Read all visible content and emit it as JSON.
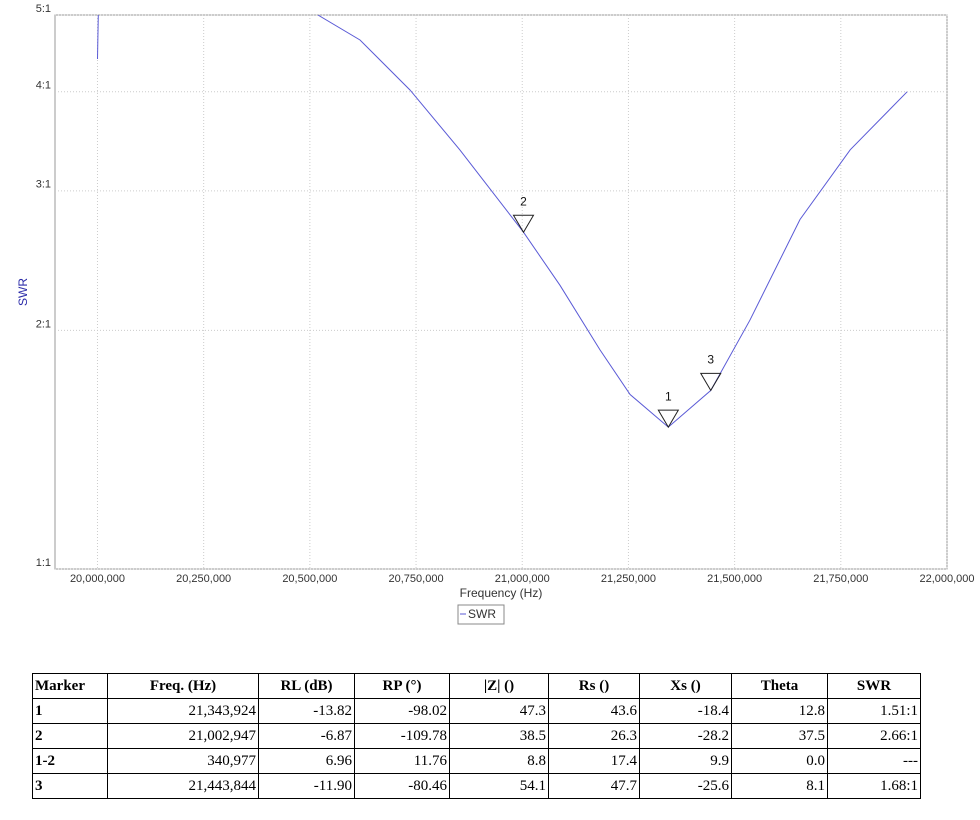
{
  "chart_data": {
    "type": "line",
    "y_label": "SWR",
    "x_label": "Frequency (Hz)",
    "xlim": [
      19900000,
      22000000
    ],
    "xticks": [
      {
        "value": 20000000,
        "label": "20,000,000"
      },
      {
        "value": 20250000,
        "label": "20,250,000"
      },
      {
        "value": 20500000,
        "label": "20,500,000"
      },
      {
        "value": 20750000,
        "label": "20,750,000"
      },
      {
        "value": 21000000,
        "label": "21,000,000"
      },
      {
        "value": 21250000,
        "label": "21,250,000"
      },
      {
        "value": 21500000,
        "label": "21,500,000"
      },
      {
        "value": 21750000,
        "label": "21,750,000"
      },
      {
        "value": 22000000,
        "label": "22,000,000"
      }
    ],
    "ylim": [
      1,
      5
    ],
    "log_y": true,
    "yticks": [
      {
        "value": 1,
        "label": "1:1"
      },
      {
        "value": 2,
        "label": "2:1"
      },
      {
        "value": 3,
        "label": "3:1"
      },
      {
        "value": 4,
        "label": "4:1"
      },
      {
        "value": 5,
        "label": "5:1"
      }
    ],
    "grid": true,
    "x": [
      20000000,
      20002000,
      null,
      20519000,
      20618000,
      20736000,
      20853000,
      21002947,
      21089000,
      21183000,
      21254000,
      21343924,
      21443844,
      21536000,
      21654000,
      21772000,
      21906000
    ],
    "series": [
      {
        "name": "SWR",
        "color": "#5a5ad6",
        "values": [
          4.4,
          5.0,
          null,
          5.0,
          4.65,
          4.02,
          3.38,
          2.66,
          2.28,
          1.89,
          1.66,
          1.51,
          1.68,
          2.06,
          2.76,
          3.38,
          4.0
        ]
      }
    ],
    "markers": [
      {
        "label": "1",
        "x": 21343924,
        "value": 1.51
      },
      {
        "label": "2",
        "x": 21002947,
        "value": 2.66
      },
      {
        "label": "3",
        "x": 21443844,
        "value": 1.68
      }
    ]
  },
  "table": {
    "header": [
      "Marker",
      "Freq. (Hz)",
      "RL (dB)",
      "RP (°)",
      "|Z| ()",
      "Rs ()",
      "Xs ()",
      "Theta",
      "SWR"
    ],
    "rows": [
      [
        "1",
        "21,343,924",
        "-13.82",
        "-98.02",
        "47.3",
        "43.6",
        "-18.4",
        "12.8",
        "1.51:1"
      ],
      [
        "2",
        "21,002,947",
        "-6.87",
        "-109.78",
        "38.5",
        "26.3",
        "-28.2",
        "37.5",
        "2.66:1"
      ],
      [
        "1-2",
        "340,977",
        "6.96",
        "11.76",
        "8.8",
        "17.4",
        "9.9",
        "0.0",
        "---"
      ],
      [
        "3",
        "21,443,844",
        "-11.90",
        "-80.46",
        "54.1",
        "47.7",
        "-25.6",
        "8.1",
        "1.68:1"
      ]
    ]
  }
}
